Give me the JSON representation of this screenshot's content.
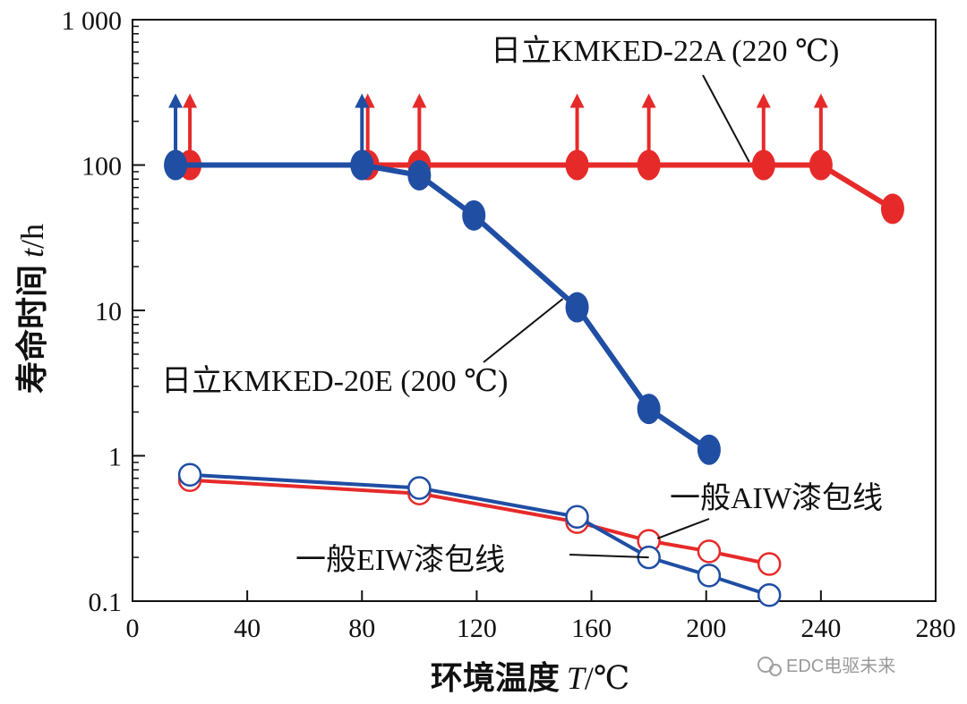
{
  "chart_data": {
    "type": "line",
    "title": "",
    "xlabel": "环境温度",
    "xlabel_var": "T",
    "xlabel_unit": "/℃",
    "ylabel": "寿命时间",
    "ylabel_var": "t",
    "ylabel_unit": "/h",
    "x_range": [
      0,
      280
    ],
    "y_range": [
      0.1,
      1000
    ],
    "y_scale": "log",
    "x_ticks": [
      0,
      40,
      80,
      120,
      160,
      200,
      240,
      280
    ],
    "x_tick_labels": [
      "0",
      "40",
      "80",
      "120",
      "160",
      "200",
      "240",
      "280"
    ],
    "y_ticks": [
      0.1,
      1,
      10,
      100,
      1000
    ],
    "y_tick_labels": [
      "0.1",
      "1",
      "10",
      "100",
      "1 000"
    ],
    "series": [
      {
        "name": "日立KMKED-22A (220 ℃)",
        "color": "#e62a2a",
        "marker": "filled",
        "x": [
          20,
          82,
          100,
          155,
          180,
          220,
          240,
          265
        ],
        "y": [
          100,
          100,
          100,
          100,
          100,
          100,
          100,
          50
        ],
        "arrows_at_x": [
          20,
          82,
          100,
          155,
          180,
          220,
          240
        ]
      },
      {
        "name": "日立KMKED-20E (200 ℃)",
        "color": "#1f4ea3",
        "marker": "filled",
        "x": [
          15,
          80,
          100,
          119,
          155,
          180,
          201
        ],
        "y": [
          100,
          100,
          85,
          45,
          10.5,
          2.1,
          1.1
        ],
        "arrows_at_x": [
          15,
          80
        ]
      },
      {
        "name": "一般AIW漆包线",
        "color": "#e62a2a",
        "marker": "open",
        "x": [
          20,
          100,
          155,
          180,
          201,
          222
        ],
        "y": [
          0.68,
          0.55,
          0.35,
          0.26,
          0.22,
          0.18
        ]
      },
      {
        "name": "一般EIW漆包线",
        "color": "#1f4ea3",
        "marker": "open",
        "x": [
          20,
          100,
          155,
          180,
          201,
          222
        ],
        "y": [
          0.74,
          0.6,
          0.38,
          0.2,
          0.15,
          0.11
        ]
      }
    ],
    "annotations": [
      {
        "text": "日立KMKED-22A (220 ℃)",
        "target_x": 215,
        "target_y": 105
      },
      {
        "text": "日立KMKED-20E (200 ℃)",
        "target_x": 150,
        "target_y": 12
      },
      {
        "text": "一般AIW漆包线",
        "target_x": 183,
        "target_y": 0.27
      },
      {
        "text": "一般EIW漆包线",
        "target_x": 180,
        "target_y": 0.2
      }
    ]
  },
  "watermark": "EDC电驱未来"
}
